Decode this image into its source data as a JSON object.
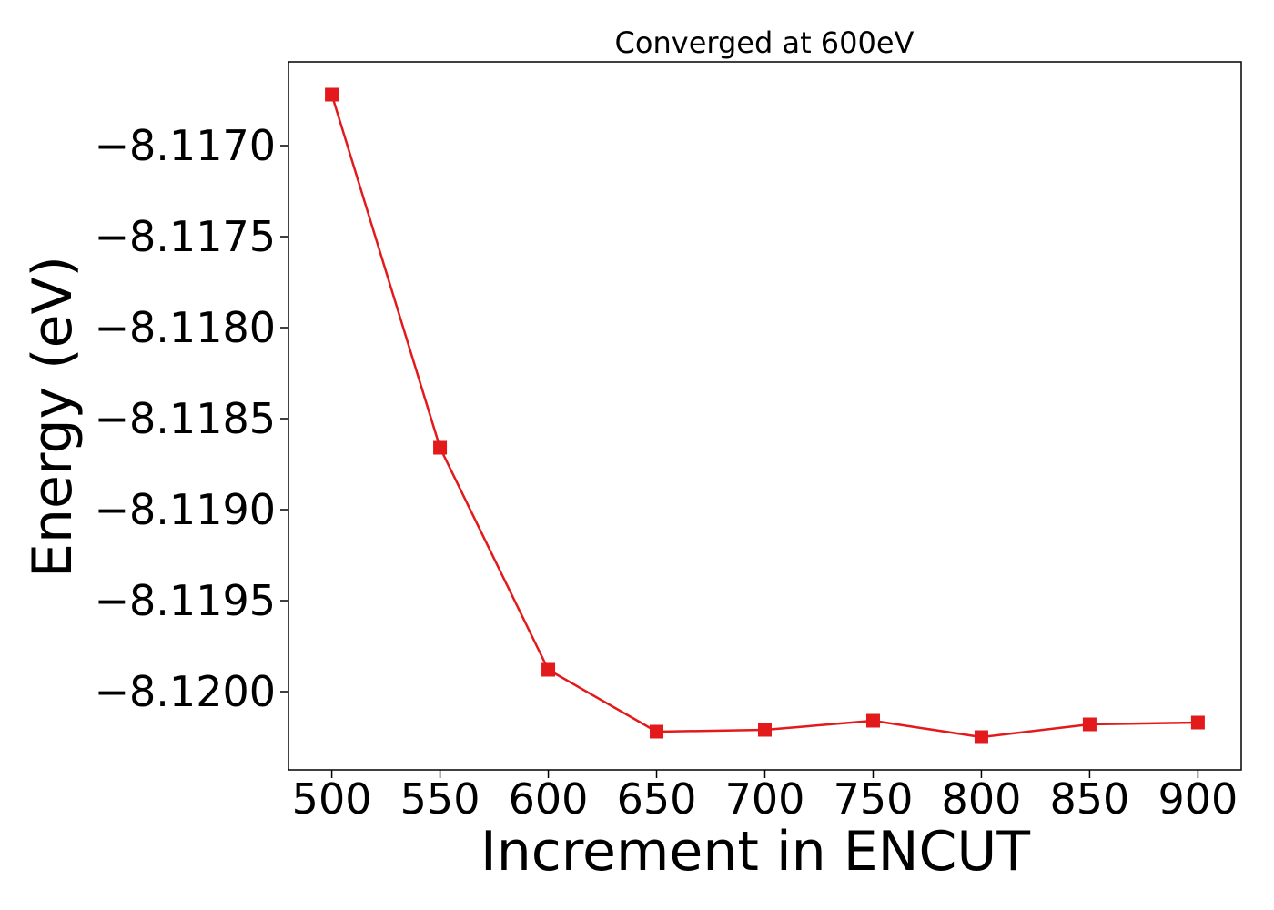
{
  "chart_data": {
    "type": "line",
    "title": "Converged at 600eV",
    "xlabel": "Increment in ENCUT",
    "ylabel": "Energy (eV)",
    "x": [
      500,
      550,
      600,
      650,
      700,
      750,
      800,
      850,
      900
    ],
    "series": [
      {
        "color": "#e31a1c",
        "marker": "square",
        "values": [
          -8.11672,
          -8.11866,
          -8.11988,
          -8.12022,
          -8.12021,
          -8.12016,
          -8.12025,
          -8.12018,
          -8.12017
        ]
      }
    ],
    "xticks": [
      500,
      550,
      600,
      650,
      700,
      750,
      800,
      850,
      900
    ],
    "xtick_labels": [
      "500",
      "550",
      "600",
      "650",
      "700",
      "750",
      "800",
      "850",
      "900"
    ],
    "yticks": [
      -8.117,
      -8.1175,
      -8.118,
      -8.1185,
      -8.119,
      -8.1195,
      -8.12
    ],
    "ytick_labels": [
      "−8.1170",
      "−8.1175",
      "−8.1180",
      "−8.1185",
      "−8.1190",
      "−8.1195",
      "−8.1200"
    ],
    "xlim": [
      480,
      920
    ],
    "ylim": [
      -8.12043,
      -8.11654
    ],
    "grid": false,
    "legend": false
  }
}
